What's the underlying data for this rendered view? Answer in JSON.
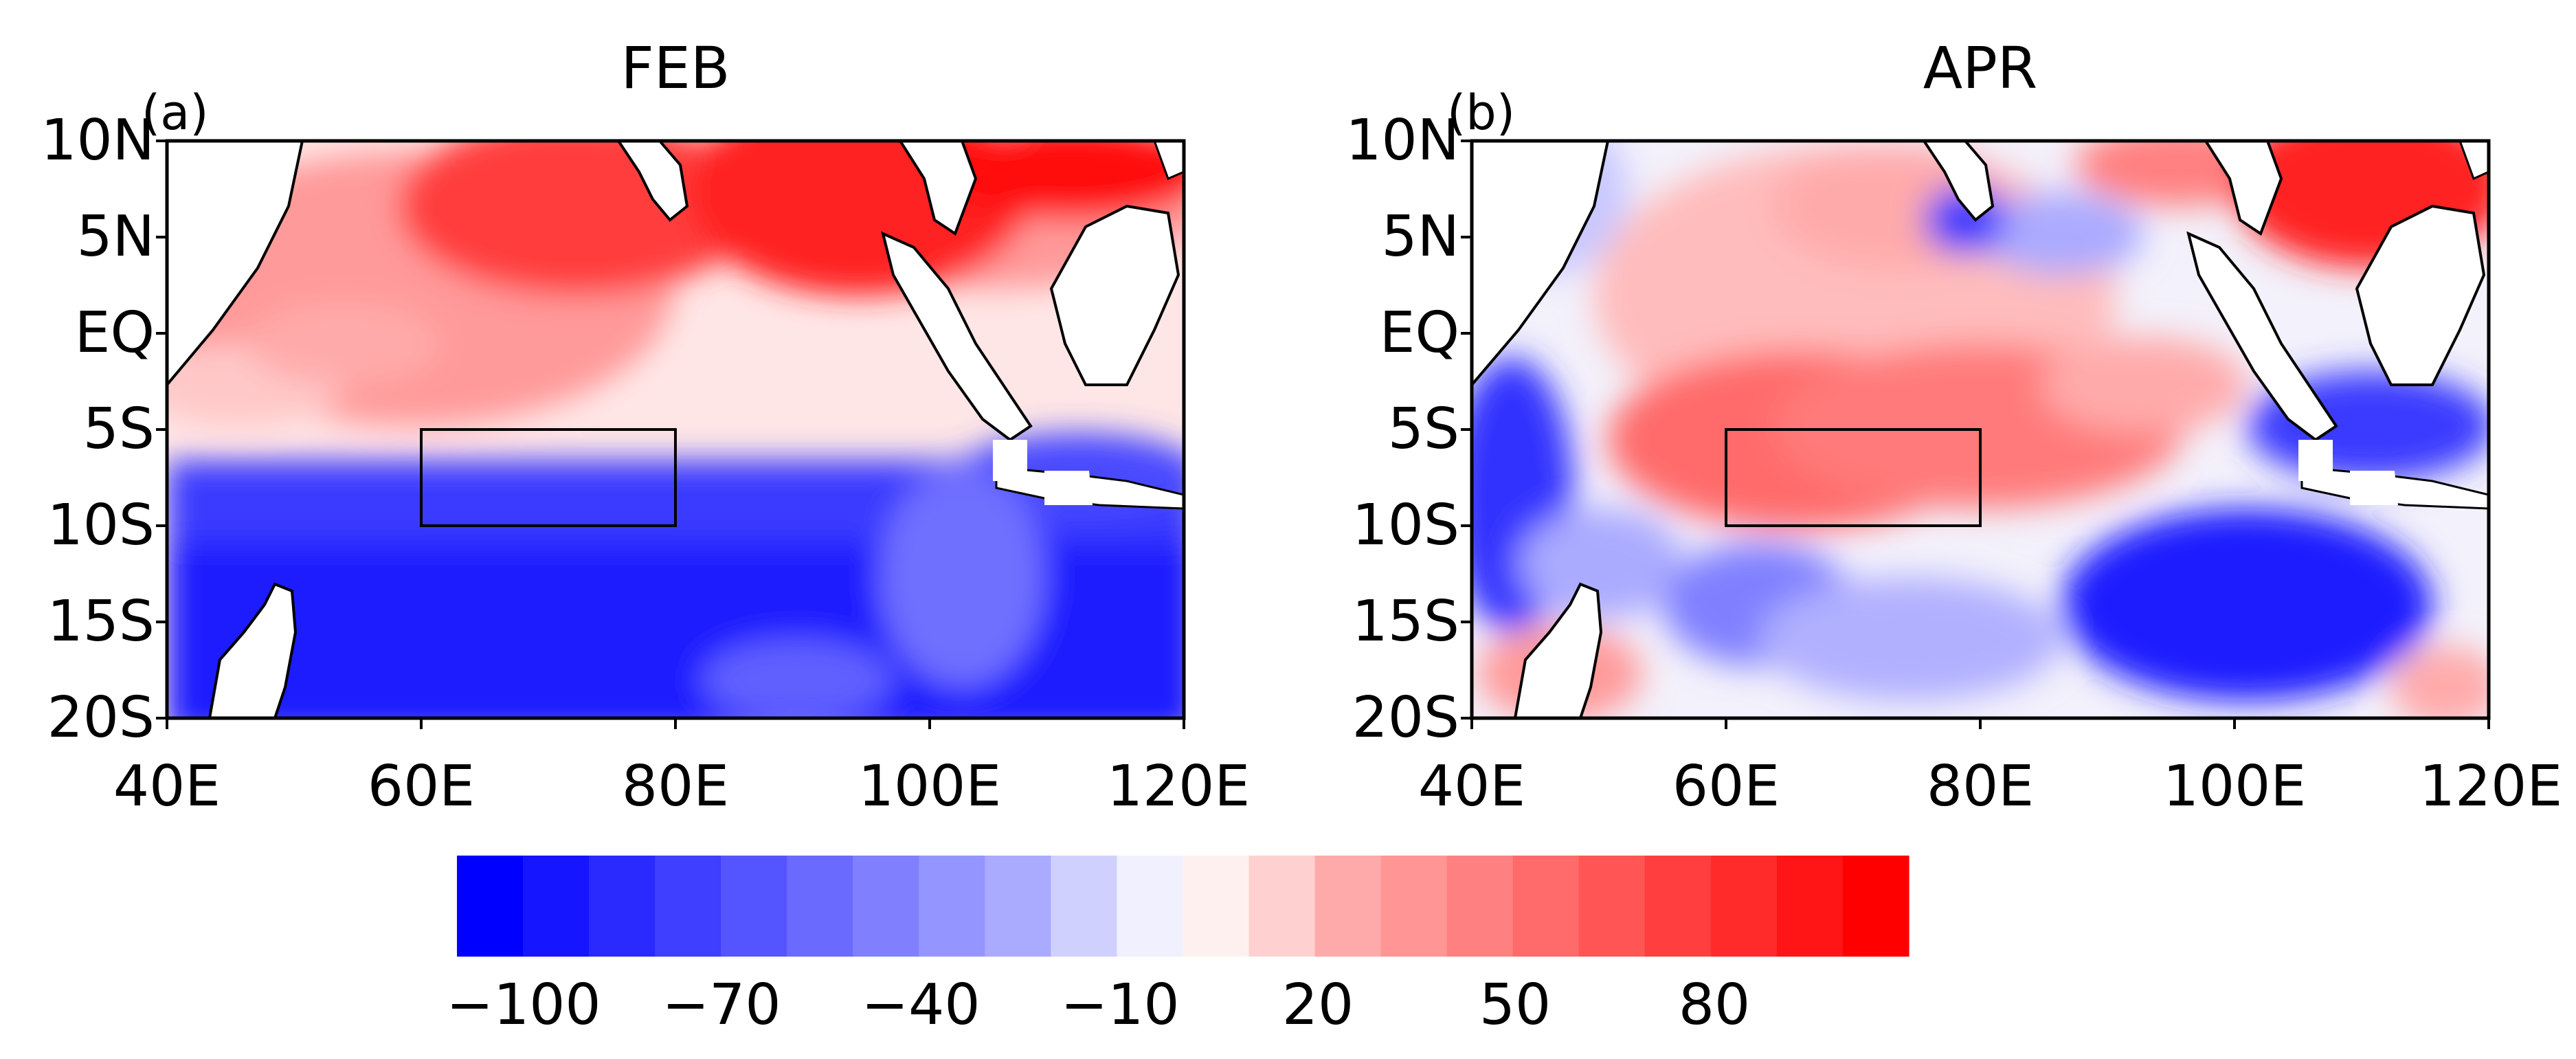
{
  "panels": [
    {
      "id": "a",
      "panel_label": "(a)",
      "title": "FEB",
      "lat_labels": [
        "10N",
        "5N",
        "EQ",
        "5S",
        "10S",
        "15S",
        "20S"
      ],
      "lon_labels": [
        "40E",
        "60E",
        "80E",
        "100E",
        "120E"
      ],
      "lat_range": [
        -20,
        10
      ],
      "lon_range": [
        40,
        120
      ],
      "box": {
        "lon": [
          60,
          80
        ],
        "lat": [
          -10,
          -5
        ]
      }
    },
    {
      "id": "b",
      "panel_label": "(b)",
      "title": "APR",
      "lat_labels": [
        "10N",
        "5N",
        "EQ",
        "5S",
        "10S",
        "15S",
        "20S"
      ],
      "lon_labels": [
        "40E",
        "60E",
        "80E",
        "100E",
        "120E"
      ],
      "lat_range": [
        -20,
        10
      ],
      "lon_range": [
        40,
        120
      ],
      "box": {
        "lon": [
          60,
          80
        ],
        "lat": [
          -10,
          -5
        ]
      }
    }
  ],
  "colorbar": {
    "labels": [
      "−100",
      "−70",
      "−40",
      "−10",
      "20",
      "50",
      "80"
    ],
    "colors": [
      "#0000ff",
      "#1515ff",
      "#2a2aff",
      "#3f3fff",
      "#5555ff",
      "#6a6aff",
      "#8080ff",
      "#9595ff",
      "#aaaaff",
      "#d0d0ff",
      "#f0f0ff",
      "#fff0f0",
      "#ffd0d0",
      "#ffaaaa",
      "#ff9595",
      "#ff8080",
      "#ff6a6a",
      "#ff5555",
      "#ff3f3f",
      "#ff2a2a",
      "#ff1515",
      "#ff0000"
    ]
  }
}
